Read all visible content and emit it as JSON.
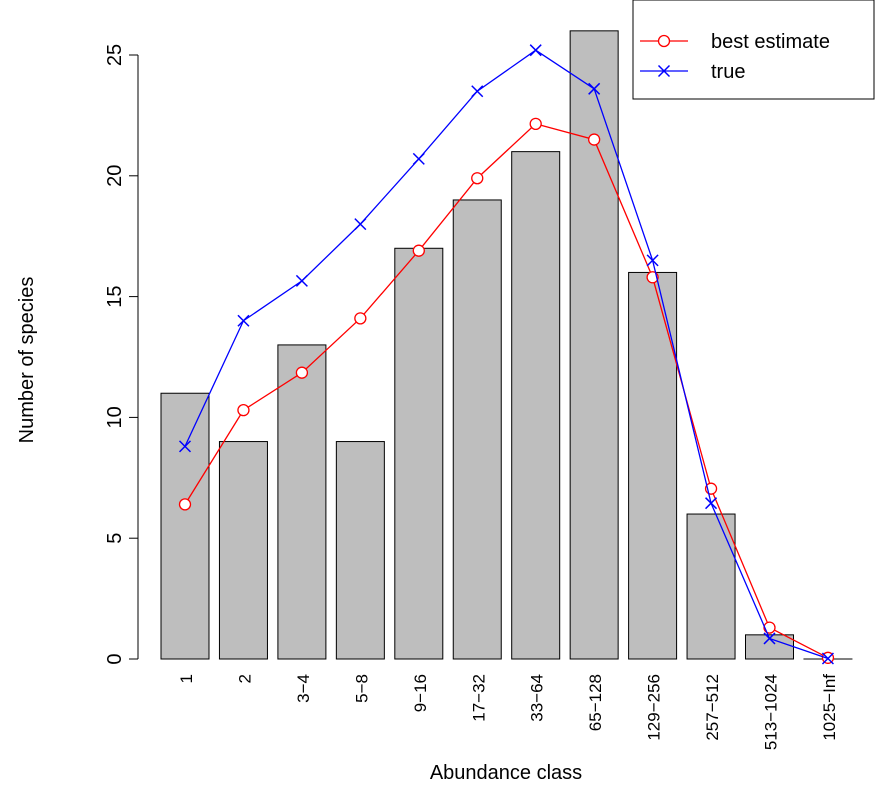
{
  "chart_data": {
    "type": "bar",
    "xlabel": "Abundance class",
    "ylabel": "Number of species",
    "ylim": [
      0,
      26
    ],
    "yticks": [
      0,
      5,
      10,
      15,
      20,
      25
    ],
    "categories": [
      "1",
      "2",
      "3−4",
      "5−8",
      "9−16",
      "17−32",
      "33−64",
      "65−128",
      "129−256",
      "257−512",
      "513−1024",
      "1025−Inf"
    ],
    "values": [
      11,
      9,
      13,
      9,
      17,
      19,
      21,
      26,
      16,
      6,
      1,
      0
    ],
    "bar_color": "#bebebe",
    "series": [
      {
        "name": "best estimate",
        "color": "#ff0000",
        "marker": "circle",
        "values": [
          6.4,
          10.3,
          11.85,
          14.1,
          16.9,
          19.9,
          22.15,
          21.5,
          15.8,
          7.05,
          1.3,
          0.05
        ]
      },
      {
        "name": "true",
        "color": "#0000ff",
        "marker": "cross",
        "values": [
          8.8,
          14.0,
          15.65,
          18.0,
          20.7,
          23.5,
          25.2,
          23.6,
          16.5,
          6.45,
          0.85,
          0.02
        ]
      }
    ],
    "legend_position": "top-right",
    "grid": false
  }
}
